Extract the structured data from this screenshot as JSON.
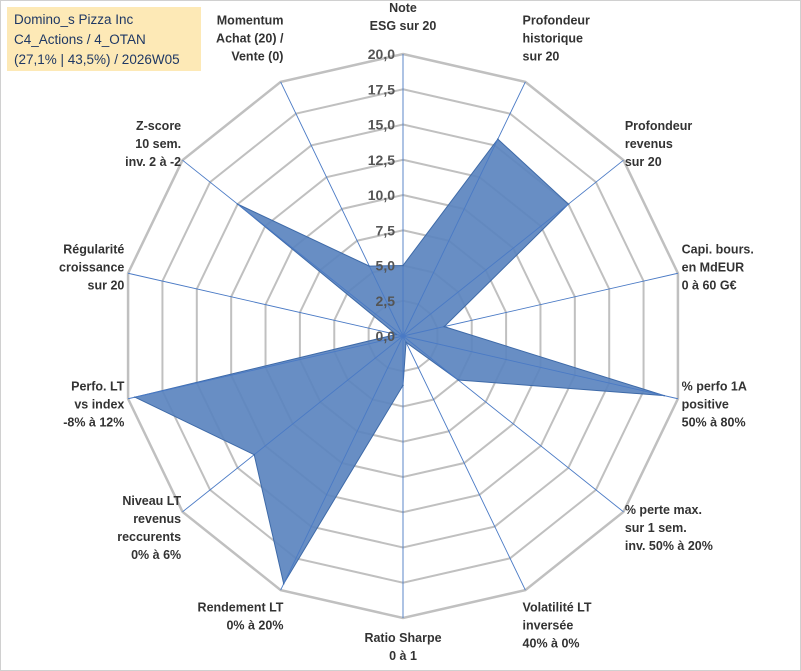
{
  "title": {
    "line1": "Domino_s Pizza Inc",
    "line2": "C4_Actions / 4_OTAN",
    "line3": "(27,1% | 43,5%) / 2026W05"
  },
  "colors": {
    "fill": "#5b84bf",
    "stroke": "#3e6aa8",
    "grid": "#c0c0c0",
    "spoke": "#4a7ac5",
    "title_bg": "#fde9b6",
    "title_text": "#1f3864"
  },
  "chart_data": {
    "type": "radar",
    "rmax": 20,
    "ticks": [
      "0,0",
      "2,5",
      "5,0",
      "7,5",
      "10,0",
      "12,5",
      "15,0",
      "17,5",
      "20,0"
    ],
    "axes": [
      {
        "label": [
          "Note",
          "ESG sur 20"
        ],
        "value": 5.0
      },
      {
        "label": [
          "Profondeur",
          "historique",
          "sur 20"
        ],
        "value": 15.5
      },
      {
        "label": [
          "Profondeur",
          "revenus",
          "sur 20"
        ],
        "value": 15.0
      },
      {
        "label": [
          "Capi. bours.",
          "en MdEUR",
          "0 à 60 G€"
        ],
        "value": 3.0
      },
      {
        "label": [
          "% perfo 1A",
          "positive",
          "50% à 80%"
        ],
        "value": 19.0
      },
      {
        "label": [
          "% perte max.",
          "sur 1 sem.",
          "inv. 50% à 20%"
        ],
        "value": 5.0
      },
      {
        "label": [
          "Volatilité LT",
          "inversée",
          "40% à 0%"
        ],
        "value": 0.5
      },
      {
        "label": [
          "Ratio Sharpe",
          "0 à 1"
        ],
        "value": 3.5
      },
      {
        "label": [
          "Rendement LT",
          "0% à 20%"
        ],
        "value": 19.5
      },
      {
        "label": [
          "Niveau LT",
          "revenus",
          "reccurents",
          "0% à 6%"
        ],
        "value": 13.5
      },
      {
        "label": [
          "Perfo. LT",
          "vs index",
          "-8% à 12%"
        ],
        "value": 19.5
      },
      {
        "label": [
          "Régularité",
          "croissance",
          "sur 20"
        ],
        "value": 0.5
      },
      {
        "label": [
          "Z-score",
          "10 sem.",
          "inv. 2 à -2"
        ],
        "value": 15.0
      },
      {
        "label": [
          "Momentum",
          "Achat (20) /",
          "Vente (0)"
        ],
        "value": 5.5
      }
    ]
  }
}
